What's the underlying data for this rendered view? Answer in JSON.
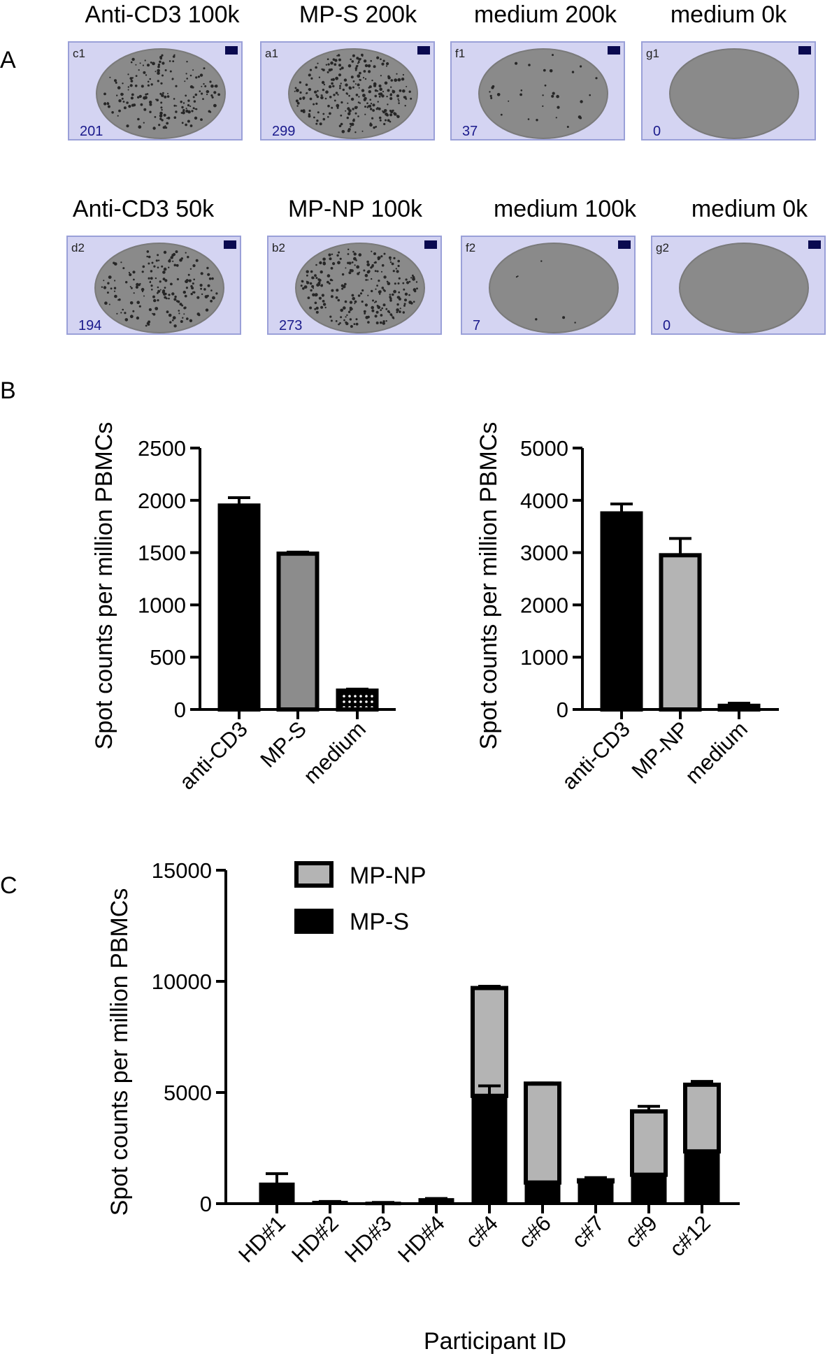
{
  "panels": {
    "A": {
      "label": "A",
      "rows": [
        [
          {
            "title": "Anti-CD3 100k",
            "well": "c1",
            "count": "201",
            "density": 201
          },
          {
            "title": "MP-S 200k",
            "well": "a1",
            "count": "299",
            "density": 299
          },
          {
            "title": "medium 200k",
            "well": "f1",
            "count": "37",
            "density": 37
          },
          {
            "title": "medium 0k",
            "well": "g1",
            "count": "0",
            "density": 0
          }
        ],
        [
          {
            "title": "Anti-CD3 50k",
            "well": "d2",
            "count": "194",
            "density": 194
          },
          {
            "title": "MP-NP 100k",
            "well": "b2",
            "count": "273",
            "density": 273
          },
          {
            "title": "medium 100k",
            "well": "f2",
            "count": "7",
            "density": 7
          },
          {
            "title": "medium 0k",
            "well": "g2",
            "count": "0",
            "density": 0
          }
        ]
      ]
    },
    "B": {
      "label": "B"
    },
    "C": {
      "label": "C"
    }
  },
  "colors": {
    "black": "#000000",
    "mid_gray": "#8c8c8c",
    "light_gray": "#b4b4b4",
    "well_frame_bg": "#d4d4f2",
    "well_frame_border": "#9aa0d8",
    "well_gray": "#8a8a8a",
    "marker": "#0a0a50"
  },
  "chart_data": [
    {
      "type": "bar",
      "panel": "B-left",
      "categories": [
        "anti-CD3",
        "MP-S",
        "medium"
      ],
      "values": [
        1950,
        1490,
        180
      ],
      "errors": [
        75,
        15,
        15
      ],
      "ylabel": "Spot counts per million PBMCs",
      "xlabel": "",
      "yticks": [
        0,
        500,
        1000,
        1500,
        2000,
        2500
      ],
      "ylim": [
        0,
        2500
      ],
      "bar_styles": [
        "black",
        "mid_gray",
        "dotted"
      ]
    },
    {
      "type": "bar",
      "panel": "B-right",
      "categories": [
        "anti-CD3",
        "MP-NP",
        "medium"
      ],
      "values": [
        3750,
        2950,
        70
      ],
      "errors": [
        180,
        320,
        50
      ],
      "ylabel": "Spot counts per million PBMCs",
      "xlabel": "",
      "yticks": [
        0,
        1000,
        2000,
        3000,
        4000,
        5000
      ],
      "ylim": [
        0,
        5000
      ],
      "bar_styles": [
        "black",
        "light_gray",
        "light_gray"
      ]
    },
    {
      "type": "stacked-bar",
      "panel": "C",
      "categories": [
        "HD#1",
        "HD#2",
        "HD#3",
        "HD#4",
        "c#4",
        "c#6",
        "c#7",
        "c#9",
        "c#12"
      ],
      "series": [
        {
          "name": "MP-S",
          "values": [
            900,
            80,
            40,
            200,
            4850,
            950,
            1000,
            1300,
            2350
          ],
          "errors": [
            450,
            20,
            15,
            30,
            450,
            0,
            0,
            0,
            0
          ]
        },
        {
          "name": "MP-NP",
          "values": [
            0,
            0,
            0,
            0,
            4850,
            4450,
            50,
            2850,
            3000
          ],
          "errors": [
            0,
            0,
            0,
            0,
            80,
            30,
            120,
            230,
            150
          ]
        }
      ],
      "ylabel": "Spot counts per million PBMCs",
      "xlabel": "Participant ID",
      "yticks": [
        0,
        5000,
        10000,
        15000
      ],
      "ylim": [
        0,
        15000
      ],
      "legend": "top-left",
      "legend_entries": [
        "MP-NP",
        "MP-S"
      ]
    }
  ]
}
